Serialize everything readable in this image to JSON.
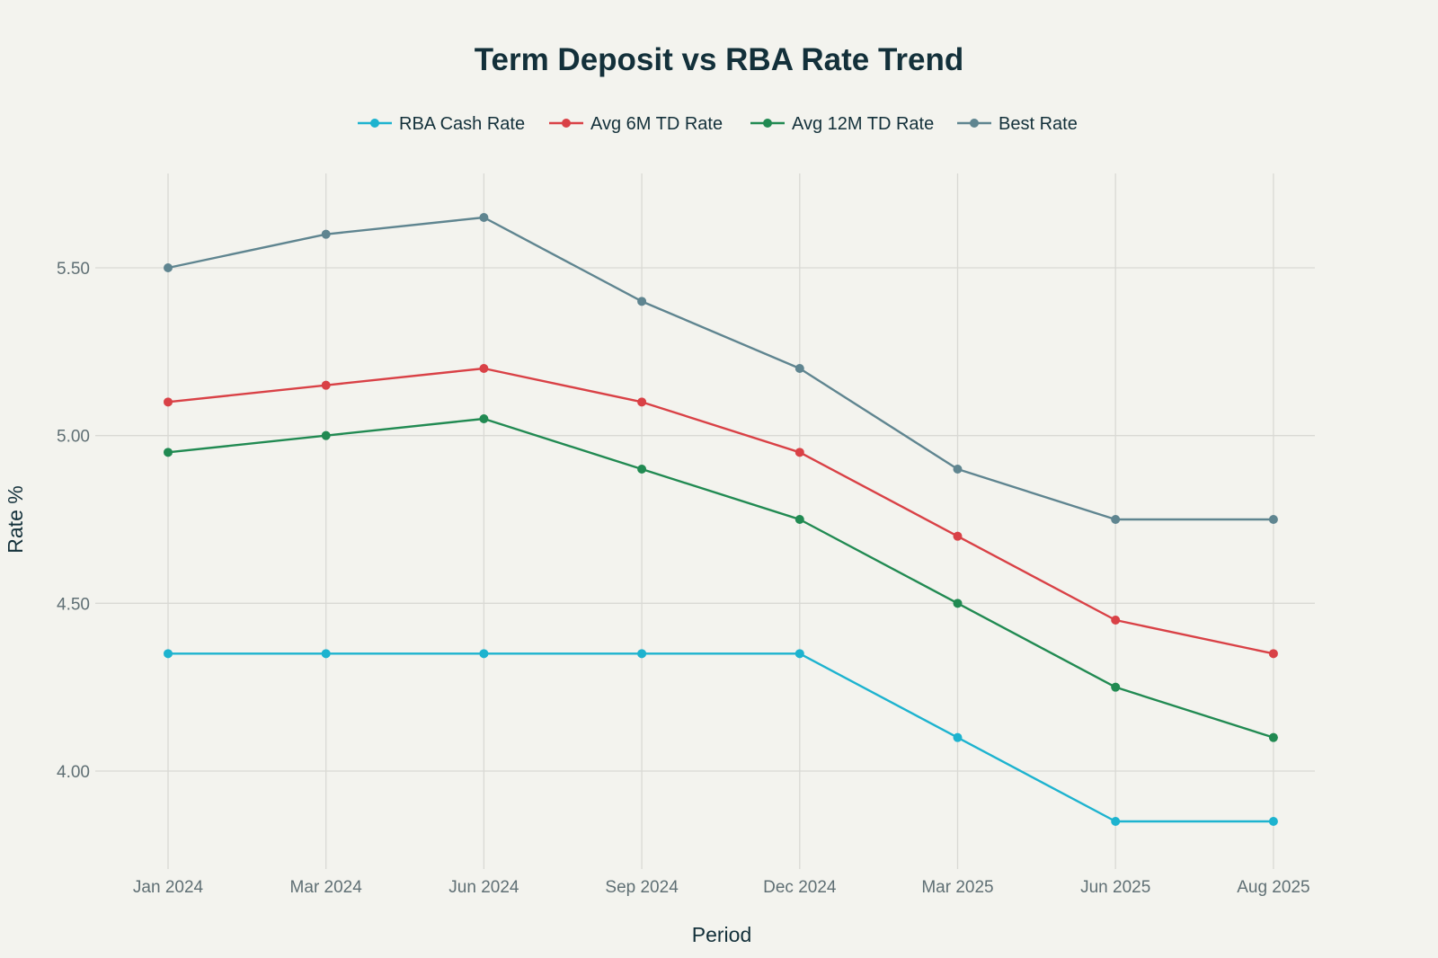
{
  "chart_data": {
    "type": "line",
    "title": "Term Deposit vs RBA Rate Trend",
    "xlabel": "Period",
    "ylabel": "Rate %",
    "categories": [
      "Jan 2024",
      "Mar 2024",
      "Jun 2024",
      "Sep 2024",
      "Dec 2024",
      "Mar 2025",
      "Jun 2025",
      "Aug 2025"
    ],
    "yticks": [
      4.0,
      4.5,
      5.0,
      5.5
    ],
    "ytick_labels": [
      "4.00",
      "4.50",
      "5.00",
      "5.50"
    ],
    "ylim": [
      3.72,
      5.77
    ],
    "grid": true,
    "legend_position": "top-center",
    "series": [
      {
        "name": "RBA Cash Rate",
        "color": "#1db3cf",
        "values": [
          4.35,
          4.35,
          4.35,
          4.35,
          4.35,
          4.1,
          3.85,
          3.85
        ]
      },
      {
        "name": "Avg 6M TD Rate",
        "color": "#d94146",
        "values": [
          5.1,
          5.15,
          5.2,
          5.1,
          4.95,
          4.7,
          4.45,
          4.35
        ]
      },
      {
        "name": "Avg 12M TD Rate",
        "color": "#218a52",
        "values": [
          4.95,
          5.0,
          5.05,
          4.9,
          4.75,
          4.5,
          4.25,
          4.1
        ]
      },
      {
        "name": "Best Rate",
        "color": "#5f8590",
        "values": [
          5.5,
          5.6,
          5.65,
          5.4,
          5.2,
          4.9,
          4.75,
          4.75
        ]
      }
    ]
  }
}
